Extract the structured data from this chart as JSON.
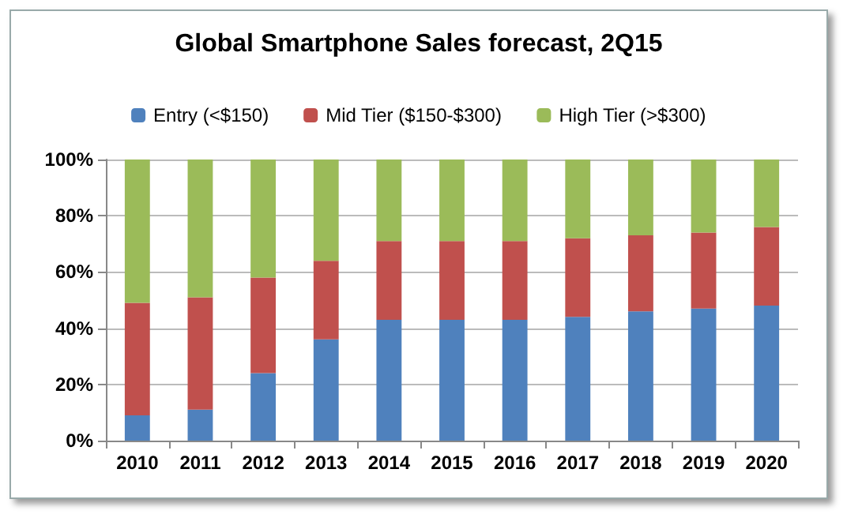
{
  "chart_data": {
    "type": "bar",
    "title": "Global Smartphone Sales forecast, 2Q15",
    "stacked": true,
    "categories": [
      "2010",
      "2011",
      "2012",
      "2013",
      "2014",
      "2015",
      "2016",
      "2017",
      "2018",
      "2019",
      "2020"
    ],
    "series": [
      {
        "name": "Entry (<$150)",
        "color": "#4f81bd",
        "values": [
          9,
          11,
          24,
          36,
          43,
          43,
          43,
          44,
          46,
          47,
          48
        ]
      },
      {
        "name": "Mid Tier ($150-$300)",
        "color": "#c0504d",
        "values": [
          40,
          40,
          34,
          28,
          28,
          28,
          28,
          28,
          27,
          27,
          28
        ]
      },
      {
        "name": "High Tier (>$300)",
        "color": "#9bbb59",
        "values": [
          51,
          49,
          42,
          36,
          29,
          29,
          29,
          28,
          27,
          26,
          24
        ]
      }
    ],
    "ylim": [
      0,
      100
    ],
    "yticks": [
      {
        "value": 0,
        "label": "0%"
      },
      {
        "value": 20,
        "label": "20%"
      },
      {
        "value": 40,
        "label": "40%"
      },
      {
        "value": 60,
        "label": "60%"
      },
      {
        "value": 80,
        "label": "80%"
      },
      {
        "value": 100,
        "label": "100%"
      }
    ],
    "grid": "y",
    "legend": "top"
  }
}
